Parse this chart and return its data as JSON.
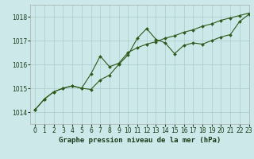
{
  "title": "Graphe pression niveau de la mer (hPa)",
  "bg_color": "#cce8e8",
  "grid_color": "#aacccc",
  "line_color": "#2d5a1b",
  "xlim": [
    -0.5,
    23
  ],
  "ylim": [
    1013.5,
    1018.5
  ],
  "yticks": [
    1014,
    1015,
    1016,
    1017,
    1018
  ],
  "xticks": [
    0,
    1,
    2,
    3,
    4,
    5,
    6,
    7,
    8,
    9,
    10,
    11,
    12,
    13,
    14,
    15,
    16,
    17,
    18,
    19,
    20,
    21,
    22,
    23
  ],
  "series1_x": [
    0,
    1,
    2,
    3,
    4,
    5,
    6,
    7,
    8,
    9,
    10,
    11,
    12,
    13,
    14,
    15,
    16,
    17,
    18,
    19,
    20,
    21,
    22,
    23
  ],
  "series1_y": [
    1014.1,
    1014.55,
    1014.85,
    1015.0,
    1015.1,
    1015.0,
    1014.95,
    1015.35,
    1015.55,
    1016.0,
    1016.4,
    1017.1,
    1017.5,
    1017.05,
    1016.9,
    1016.45,
    1016.8,
    1016.9,
    1016.85,
    1017.0,
    1017.15,
    1017.25,
    1017.8,
    1018.1
  ],
  "series2_x": [
    0,
    1,
    2,
    3,
    4,
    5,
    6,
    7,
    8,
    9,
    10,
    11,
    12,
    13,
    14,
    15,
    16,
    17,
    18,
    19,
    20,
    21,
    22,
    23
  ],
  "series2_y": [
    1014.1,
    1014.55,
    1014.85,
    1015.0,
    1015.1,
    1015.0,
    1015.6,
    1016.35,
    1015.9,
    1016.05,
    1016.5,
    1016.7,
    1016.85,
    1016.95,
    1017.1,
    1017.2,
    1017.35,
    1017.45,
    1017.6,
    1017.7,
    1017.85,
    1017.95,
    1018.05,
    1018.15
  ],
  "title_fontsize": 6.5,
  "tick_fontsize": 5.5
}
